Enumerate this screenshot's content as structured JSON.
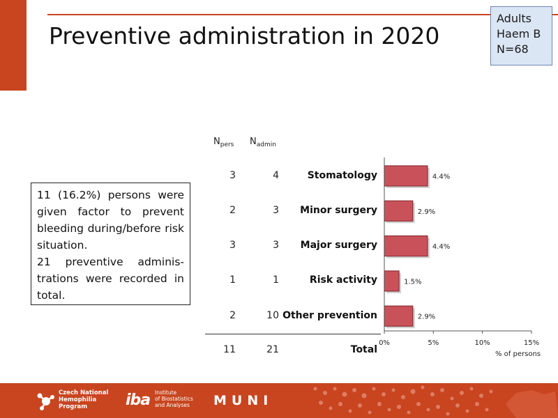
{
  "title": "Preventive administration in 2020",
  "cohort": {
    "line1": "Adults",
    "line2": "Haem B",
    "line3": "N=68"
  },
  "summary": {
    "para1": "11 (16.2%) persons were given factor to prevent bleeding during/before risk situation.",
    "para2": "21 preventive adminis-trations were recorded in total."
  },
  "columns": {
    "npers_main": "N",
    "npers_sub": "pers",
    "nadmin_main": "N",
    "nadmin_sub": "admin"
  },
  "total": {
    "label": "Total",
    "npers": "11",
    "nadmin": "21"
  },
  "footer": {
    "cnhp_line1": "Czech National",
    "cnhp_line2": "Hemophilia",
    "cnhp_line3": "Program",
    "iba_mark": "iba",
    "iba_line1": "Institute",
    "iba_line2": "of Biostatistics",
    "iba_line3": "and Analyses",
    "muni": "MUNI"
  },
  "colors": {
    "accent": "#c8451f",
    "bar": "#c9525a",
    "bar_stroke": "#8e2f36",
    "cohort_bg": "#dbe6f4"
  },
  "chart_data": {
    "type": "bar",
    "orientation": "horizontal",
    "categories": [
      "Stomatology",
      "Minor surgery",
      "Major surgery",
      "Risk activity",
      "Other prevention"
    ],
    "npers": [
      "3",
      "2",
      "3",
      "1",
      "2"
    ],
    "nadmin": [
      "4",
      "3",
      "3",
      "1",
      "10"
    ],
    "values": [
      4.4,
      2.9,
      4.4,
      1.5,
      2.9
    ],
    "value_labels": [
      "4.4%",
      "2.9%",
      "4.4%",
      "1.5%",
      "2.9%"
    ],
    "xlabel": "% of persons",
    "xlim": [
      0,
      15
    ],
    "xticks": [
      0,
      5,
      10,
      15
    ],
    "xtick_labels": [
      "0%",
      "5%",
      "10%",
      "15%"
    ],
    "grid": false,
    "legend": "none"
  }
}
